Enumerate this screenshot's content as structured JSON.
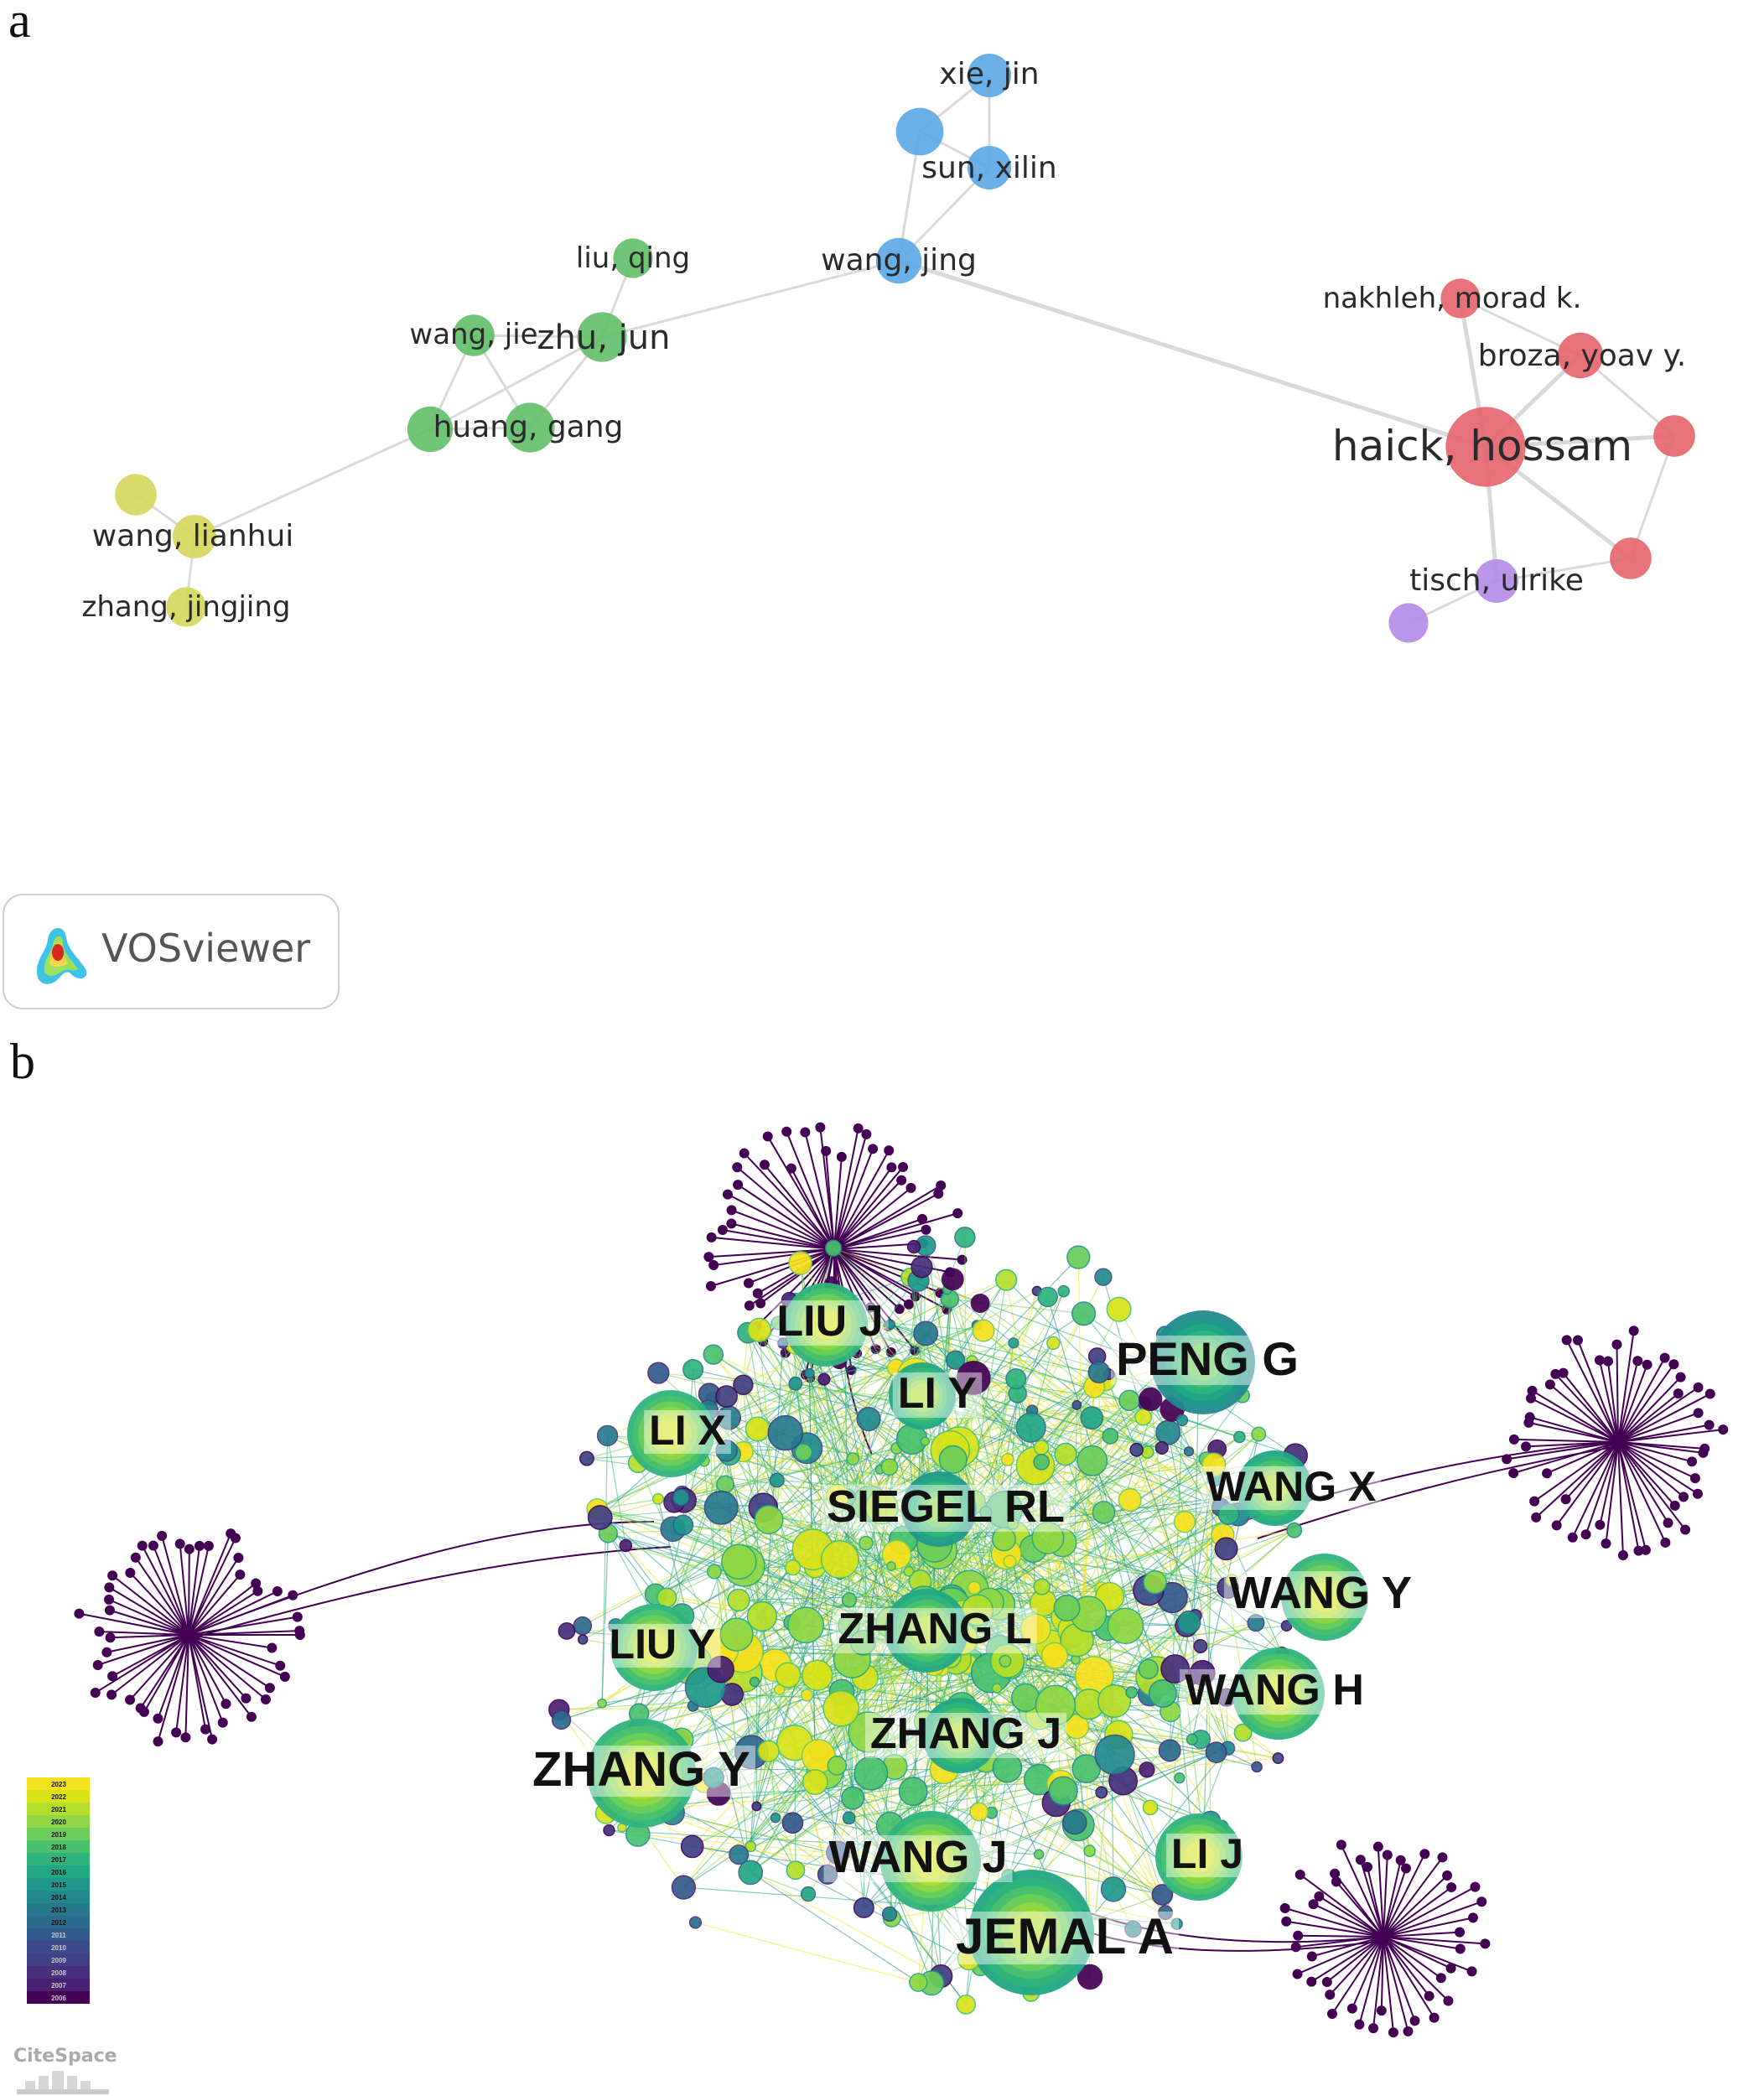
{
  "panels": {
    "a": "a",
    "b": "b"
  },
  "vosviewer": {
    "logo_text": "VOSviewer",
    "colors": {
      "red": "#e5636a",
      "green": "#5fbf66",
      "blue": "#5aa7e6",
      "yellow": "#d4d65a",
      "purple": "#b48be6",
      "edge": "#d9d9d9"
    },
    "nodes": [
      {
        "id": "xie_jin",
        "label": "xie, jin",
        "cluster": "blue",
        "weight": 1
      },
      {
        "id": "blue_unlabeled",
        "label": "",
        "cluster": "blue",
        "weight": 1.2
      },
      {
        "id": "sun_xilin",
        "label": "sun, xilin",
        "cluster": "blue",
        "weight": 1
      },
      {
        "id": "wang_jing",
        "label": "wang, jing",
        "cluster": "blue",
        "weight": 1.1
      },
      {
        "id": "liu_qing",
        "label": "liu, qing",
        "cluster": "green",
        "weight": 0.8
      },
      {
        "id": "wang_jie",
        "label": "wang, jie",
        "cluster": "green",
        "weight": 0.9
      },
      {
        "id": "zhu_jun",
        "label": "zhu, jun",
        "cluster": "green",
        "weight": 1.3
      },
      {
        "id": "huang_gang",
        "label": "huang, gang",
        "cluster": "green",
        "weight": 1.3
      },
      {
        "id": "green_unlabeled",
        "label": "",
        "cluster": "green",
        "weight": 1.1
      },
      {
        "id": "yellow_unlabeled",
        "label": "",
        "cluster": "yellow",
        "weight": 0.9
      },
      {
        "id": "wang_lianhui",
        "label": "wang, lianhui",
        "cluster": "yellow",
        "weight": 1
      },
      {
        "id": "zhang_jingjing",
        "label": "zhang, jingjing",
        "cluster": "yellow",
        "weight": 0.8
      },
      {
        "id": "nakhleh",
        "label": "nakhleh, morad k.",
        "cluster": "red",
        "weight": 0.8
      },
      {
        "id": "broza",
        "label": "broza, yoav y.",
        "cluster": "red",
        "weight": 1.1
      },
      {
        "id": "haick",
        "label": "haick, hossam",
        "cluster": "red",
        "weight": 2.8
      },
      {
        "id": "red_unlabeled_1",
        "label": "",
        "cluster": "red",
        "weight": 0.9
      },
      {
        "id": "red_unlabeled_2",
        "label": "",
        "cluster": "red",
        "weight": 0.9
      },
      {
        "id": "tisch",
        "label": "tisch, ulrike",
        "cluster": "purple",
        "weight": 1
      },
      {
        "id": "purple_unlabeled",
        "label": "",
        "cluster": "purple",
        "weight": 0.8
      }
    ],
    "edges": [
      [
        "xie_jin",
        "blue_unlabeled"
      ],
      [
        "xie_jin",
        "sun_xilin"
      ],
      [
        "blue_unlabeled",
        "sun_xilin"
      ],
      [
        "blue_unlabeled",
        "wang_jing"
      ],
      [
        "sun_xilin",
        "wang_jing"
      ],
      [
        "wang_jing",
        "zhu_jun"
      ],
      [
        "wang_jing",
        "haick"
      ],
      [
        "liu_qing",
        "zhu_jun"
      ],
      [
        "wang_jie",
        "zhu_jun"
      ],
      [
        "wang_jie",
        "huang_gang"
      ],
      [
        "wang_jie",
        "green_unlabeled"
      ],
      [
        "zhu_jun",
        "huang_gang"
      ],
      [
        "zhu_jun",
        "green_unlabeled"
      ],
      [
        "huang_gang",
        "green_unlabeled"
      ],
      [
        "green_unlabeled",
        "wang_lianhui"
      ],
      [
        "yellow_unlabeled",
        "wang_lianhui"
      ],
      [
        "wang_lianhui",
        "zhang_jingjing"
      ],
      [
        "nakhleh",
        "haick"
      ],
      [
        "nakhleh",
        "broza"
      ],
      [
        "broza",
        "haick"
      ],
      [
        "broza",
        "red_unlabeled_1"
      ],
      [
        "haick",
        "red_unlabeled_1"
      ],
      [
        "haick",
        "red_unlabeled_2"
      ],
      [
        "haick",
        "tisch"
      ],
      [
        "red_unlabeled_1",
        "red_unlabeled_2"
      ],
      [
        "tisch",
        "red_unlabeled_2"
      ],
      [
        "tisch",
        "purple_unlabeled"
      ]
    ]
  },
  "citespace": {
    "logo_text": "CiteSpace",
    "legend_years": [
      "2023",
      "2022",
      "2021",
      "2020",
      "2019",
      "2018",
      "2017",
      "2016",
      "2015",
      "2014",
      "2013",
      "2012",
      "2011",
      "2010",
      "2009",
      "2008",
      "2007",
      "2006"
    ],
    "year_colors": [
      "#f7e11c",
      "#d8e219",
      "#b5de2b",
      "#8fd744",
      "#6ccd5a",
      "#4ac16d",
      "#2fb47c",
      "#22a785",
      "#1f988b",
      "#23898e",
      "#277a8e",
      "#2c6b8e",
      "#325b8d",
      "#3a4a8a",
      "#414083",
      "#462f7b",
      "#482173",
      "#440154"
    ],
    "authors": [
      {
        "id": "jemal_a",
        "label": "JEMAL A",
        "year": "2021"
      },
      {
        "id": "zhang_y",
        "label": "ZHANG Y",
        "year": "2022"
      },
      {
        "id": "zhang_j",
        "label": "ZHANG J",
        "year": "2021"
      },
      {
        "id": "zhang_l",
        "label": "ZHANG L",
        "year": "2021"
      },
      {
        "id": "siegel_rl",
        "label": "SIEGEL RL",
        "year": "2020"
      },
      {
        "id": "peng_g",
        "label": "PENG G",
        "year": "2019"
      },
      {
        "id": "liu_j",
        "label": "LIU J",
        "year": "2022"
      },
      {
        "id": "li_y",
        "label": "LI Y",
        "year": "2021"
      },
      {
        "id": "li_x",
        "label": "LI X",
        "year": "2022"
      },
      {
        "id": "liu_y",
        "label": "LIU Y",
        "year": "2022"
      },
      {
        "id": "wang_x",
        "label": "WANG X",
        "year": "2021"
      },
      {
        "id": "wang_y",
        "label": "WANG Y",
        "year": "2022"
      },
      {
        "id": "wang_h",
        "label": "WANG H",
        "year": "2022"
      },
      {
        "id": "wang_j",
        "label": "WANG J",
        "year": "2022"
      },
      {
        "id": "li_j",
        "label": "LI J",
        "year": "2022"
      }
    ],
    "outlier_clusters": [
      {
        "id": "left_cluster",
        "year": "2006"
      },
      {
        "id": "right_cluster",
        "year": "2006"
      },
      {
        "id": "top_cluster",
        "year": "2006"
      },
      {
        "id": "bottom_right_cluster",
        "year": "2006"
      }
    ]
  }
}
